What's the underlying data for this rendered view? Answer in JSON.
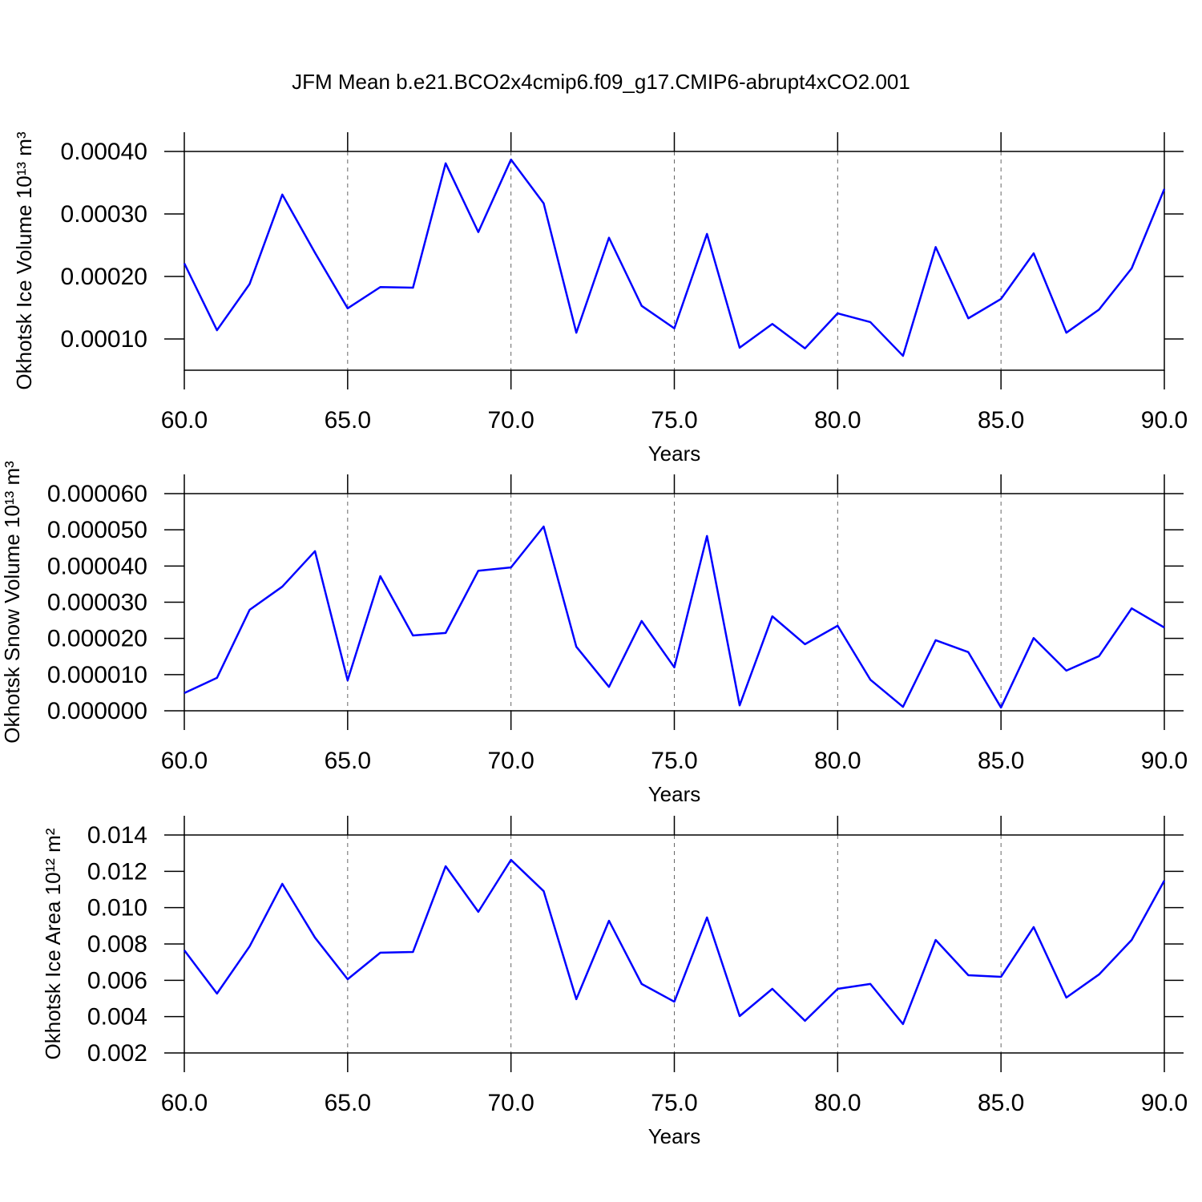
{
  "title": "JFM Mean b.e21.BCO2x4cmip6.f09_g17.CMIP6-abrupt4xCO2.001",
  "chart_data": [
    {
      "type": "line",
      "xlabel": "Years",
      "ylabel": "Okhotsk Ice Volume 10¹³ m³",
      "x": [
        60,
        61,
        62,
        63,
        64,
        65,
        66,
        67,
        68,
        69,
        70,
        71,
        72,
        73,
        74,
        75,
        76,
        77,
        78,
        79,
        80,
        81,
        82,
        83,
        84,
        85,
        86,
        87,
        88,
        89,
        90
      ],
      "series": [
        {
          "color": "#0000ff",
          "values": [
            0.000221,
            0.000114,
            0.000188,
            0.000331,
            0.000238,
            0.000149,
            0.000183,
            0.000182,
            0.000381,
            0.000271,
            0.000387,
            0.000317,
            0.00011,
            0.000262,
            0.000153,
            0.000117,
            0.000268,
            8.6e-05,
            0.000124,
            8.5e-05,
            0.000141,
            0.000127,
            7.3e-05,
            0.000247,
            0.000133,
            0.000164,
            0.000237,
            0.00011,
            0.000147,
            0.000213,
            0.00034
          ]
        }
      ],
      "xlim": [
        60,
        90
      ],
      "xticks": [
        {
          "value": 60,
          "label": "60.0"
        },
        {
          "value": 65,
          "label": "65.0"
        },
        {
          "value": 70,
          "label": "70.0"
        },
        {
          "value": 75,
          "label": "75.0"
        },
        {
          "value": 80,
          "label": "80.0"
        },
        {
          "value": 85,
          "label": "85.0"
        },
        {
          "value": 90,
          "label": "90.0"
        }
      ],
      "ylim": [
        5e-05,
        0.0004
      ],
      "yticks": [
        {
          "value": 0.0001,
          "label": "0.00010"
        },
        {
          "value": 0.0002,
          "label": "0.00020"
        },
        {
          "value": 0.0003,
          "label": "0.00030"
        },
        {
          "value": 0.0004,
          "label": "0.00040"
        }
      ],
      "grid": "x"
    },
    {
      "type": "line",
      "xlabel": "Years",
      "ylabel": "Okhotsk Snow Volume 10¹³ m³",
      "x": [
        60,
        61,
        62,
        63,
        64,
        65,
        66,
        67,
        68,
        69,
        70,
        71,
        72,
        73,
        74,
        75,
        76,
        77,
        78,
        79,
        80,
        81,
        82,
        83,
        84,
        85,
        86,
        87,
        88,
        89,
        90
      ],
      "series": [
        {
          "color": "#0000ff",
          "values": [
            4.9e-06,
            9.1e-06,
            2.79e-05,
            3.43e-05,
            4.41e-05,
            8.4e-06,
            3.72e-05,
            2.08e-05,
            2.15e-05,
            3.87e-05,
            3.96e-05,
            5.09e-05,
            1.77e-05,
            6.6e-06,
            2.48e-05,
            1.2e-05,
            4.83e-05,
            1.5e-06,
            2.61e-05,
            1.84e-05,
            2.35e-05,
            8.6e-06,
            1.1e-06,
            1.95e-05,
            1.62e-05,
            9e-07,
            2.01e-05,
            1.11e-05,
            1.51e-05,
            2.83e-05,
            2.3e-05
          ]
        }
      ],
      "xlim": [
        60,
        90
      ],
      "xticks": [
        {
          "value": 60,
          "label": "60.0"
        },
        {
          "value": 65,
          "label": "65.0"
        },
        {
          "value": 70,
          "label": "70.0"
        },
        {
          "value": 75,
          "label": "75.0"
        },
        {
          "value": 80,
          "label": "80.0"
        },
        {
          "value": 85,
          "label": "85.0"
        },
        {
          "value": 90,
          "label": "90.0"
        }
      ],
      "ylim": [
        0,
        6e-05
      ],
      "yticks": [
        {
          "value": 0,
          "label": "0.000000"
        },
        {
          "value": 1e-05,
          "label": "0.000010"
        },
        {
          "value": 2e-05,
          "label": "0.000020"
        },
        {
          "value": 3e-05,
          "label": "0.000030"
        },
        {
          "value": 4e-05,
          "label": "0.000040"
        },
        {
          "value": 5e-05,
          "label": "0.000050"
        },
        {
          "value": 6e-05,
          "label": "0.000060"
        }
      ],
      "grid": "x"
    },
    {
      "type": "line",
      "xlabel": "Years",
      "ylabel": "Okhotsk Ice Area 10¹² m²",
      "x": [
        60,
        61,
        62,
        63,
        64,
        65,
        66,
        67,
        68,
        69,
        70,
        71,
        72,
        73,
        74,
        75,
        76,
        77,
        78,
        79,
        80,
        81,
        82,
        83,
        84,
        85,
        86,
        87,
        88,
        89,
        90
      ],
      "series": [
        {
          "color": "#0000ff",
          "values": [
            0.00765,
            0.00527,
            0.00787,
            0.01131,
            0.00835,
            0.00606,
            0.00752,
            0.00756,
            0.01228,
            0.00977,
            0.01263,
            0.01091,
            0.00496,
            0.00928,
            0.0058,
            0.00482,
            0.00946,
            0.00403,
            0.00553,
            0.00377,
            0.00553,
            0.0058,
            0.00359,
            0.00822,
            0.00628,
            0.00619,
            0.00893,
            0.00505,
            0.00632,
            0.00822,
            0.01149
          ]
        }
      ],
      "xlim": [
        60,
        90
      ],
      "xticks": [
        {
          "value": 60,
          "label": "60.0"
        },
        {
          "value": 65,
          "label": "65.0"
        },
        {
          "value": 70,
          "label": "70.0"
        },
        {
          "value": 75,
          "label": "75.0"
        },
        {
          "value": 80,
          "label": "80.0"
        },
        {
          "value": 85,
          "label": "85.0"
        },
        {
          "value": 90,
          "label": "90.0"
        }
      ],
      "ylim": [
        0.002,
        0.014
      ],
      "yticks": [
        0.002,
        0.004,
        0.006,
        {
          "value": 0.008,
          "label": "0.008"
        },
        {
          "value": 0.01,
          "label": "0.010"
        },
        0.012,
        0.014
      ],
      "grid": "x"
    }
  ]
}
